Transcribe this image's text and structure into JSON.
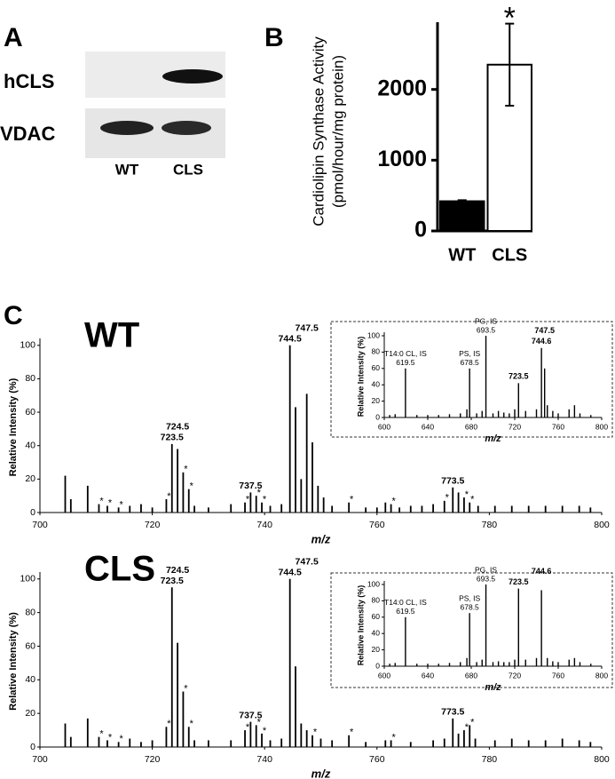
{
  "panel_labels": [
    "A",
    "B",
    "C"
  ],
  "blot": {
    "rows": [
      "hCLS",
      "VDAC"
    ],
    "lanes": [
      "WT",
      "CLS"
    ]
  },
  "chart_data": [
    {
      "type": "bar",
      "y_label": [
        "Cardiolipin Synthase Activity",
        "(pmol/hour/mg protein)"
      ],
      "categories": [
        "WT",
        "CLS"
      ],
      "values": [
        420,
        2350
      ],
      "errors": [
        15,
        580
      ],
      "colors": [
        "#000000",
        "#ffffff"
      ],
      "significance": "*",
      "ylim": [
        0,
        2950
      ],
      "yticks": [
        0,
        1000,
        2000
      ]
    },
    {
      "type": "spectrum",
      "title": "WT",
      "x_label": "m/z",
      "y_label": "Relative Intensity (%)",
      "xlim": [
        700,
        800
      ],
      "xticks": [
        700,
        720,
        740,
        760,
        780,
        800
      ],
      "ylim": [
        0,
        102
      ],
      "yticks": [
        0,
        20,
        40,
        60,
        80,
        100
      ],
      "x": [
        704.5,
        705.5,
        708.5,
        710.5,
        712,
        714,
        716,
        718,
        720,
        722.5,
        723.5,
        724.5,
        725.5,
        726.5,
        727.5,
        730,
        734,
        736.5,
        737.5,
        738.5,
        739.5,
        741,
        743,
        744.5,
        745.5,
        746.5,
        747.5,
        748.5,
        749.5,
        750.5,
        752,
        755,
        758,
        760,
        761.5,
        762.5,
        764,
        766,
        768,
        770,
        772,
        773.5,
        774.5,
        775.5,
        776.5,
        778,
        781,
        784,
        787,
        790,
        793,
        796,
        798
      ],
      "values": [
        22,
        8,
        16,
        5,
        4,
        3,
        4,
        5,
        3,
        8,
        41,
        38,
        24,
        14,
        4,
        3,
        5,
        6,
        12,
        10,
        6,
        4,
        5,
        100,
        63,
        20,
        71,
        42,
        16,
        9,
        4,
        6,
        3,
        3,
        6,
        5,
        3,
        4,
        4,
        5,
        7,
        15,
        12,
        9,
        6,
        4,
        4,
        4,
        4,
        4,
        4,
        4,
        3
      ],
      "peak_labels": [
        {
          "x": 723.5,
          "text": "723.5"
        },
        {
          "x": 724.5,
          "text": "724.5"
        },
        {
          "x": 737.5,
          "text": "737.5"
        },
        {
          "x": 744.5,
          "text": "744.5"
        },
        {
          "x": 747.5,
          "text": "747.5"
        },
        {
          "x": 773.5,
          "text": "773.5"
        },
        {
          "x": 710.5,
          "text": "*"
        },
        {
          "x": 712,
          "text": "*"
        },
        {
          "x": 714,
          "text": "*"
        },
        {
          "x": 722.5,
          "text": "*"
        },
        {
          "x": 725.5,
          "text": "*"
        },
        {
          "x": 726.5,
          "text": "*"
        },
        {
          "x": 736.5,
          "text": "*"
        },
        {
          "x": 738.5,
          "text": "*"
        },
        {
          "x": 739.5,
          "text": "*"
        },
        {
          "x": 755,
          "text": "*"
        },
        {
          "x": 762.5,
          "text": "*"
        },
        {
          "x": 772,
          "text": "*"
        },
        {
          "x": 775.5,
          "text": "*"
        },
        {
          "x": 776.5,
          "text": "*"
        }
      ]
    },
    {
      "type": "spectrum",
      "inset": true,
      "x_label": "m/z",
      "y_label": "Relative Intensity (%)",
      "xlim": [
        600,
        800
      ],
      "xticks": [
        600,
        640,
        680,
        720,
        760,
        800
      ],
      "ylim": [
        0,
        100
      ],
      "yticks": [
        0,
        20,
        40,
        60,
        80,
        100
      ],
      "x": [
        605,
        610,
        619.5,
        630,
        640,
        650,
        660,
        670,
        676,
        678.5,
        685,
        690,
        693.5,
        700,
        705,
        710,
        715,
        720,
        723.5,
        730,
        740,
        744.6,
        747.5,
        750,
        755,
        760,
        770,
        775,
        780,
        790
      ],
      "values": [
        3,
        4,
        60,
        3,
        3,
        3,
        4,
        5,
        10,
        60,
        5,
        8,
        100,
        5,
        8,
        6,
        5,
        10,
        42,
        8,
        10,
        85,
        60,
        15,
        8,
        5,
        10,
        15,
        5,
        3
      ],
      "peak_labels": [
        {
          "x": 619.5,
          "text": [
            "T14:0 CL, IS",
            "619.5"
          ]
        },
        {
          "x": 678.5,
          "text": [
            "PS, IS",
            "678.5"
          ]
        },
        {
          "x": 693.5,
          "text": [
            "PG, IS",
            "693.5"
          ]
        },
        {
          "x": 723.5,
          "text": "723.5"
        },
        {
          "x": 744.6,
          "text": "744.6"
        },
        {
          "x": 747.5,
          "text": "747.5"
        }
      ]
    },
    {
      "type": "spectrum",
      "title": "CLS",
      "x_label": "m/z",
      "y_label": "Relative Intensity (%)",
      "xlim": [
        700,
        800
      ],
      "xticks": [
        700,
        720,
        740,
        760,
        780,
        800
      ],
      "ylim": [
        0,
        102
      ],
      "yticks": [
        0,
        20,
        40,
        60,
        80,
        100
      ],
      "x": [
        704.5,
        705.5,
        708.5,
        710.5,
        712,
        714,
        716,
        718,
        720,
        722.5,
        723.5,
        724.5,
        725.5,
        726.5,
        727.5,
        730,
        734,
        736.5,
        737.5,
        738.5,
        739.5,
        741,
        743,
        744.5,
        745.5,
        746.5,
        747.5,
        748.5,
        750,
        752,
        755,
        758,
        761.5,
        762.5,
        766,
        770,
        772,
        773.5,
        774.5,
        775.5,
        776.5,
        777.5,
        781,
        784,
        787,
        790,
        793,
        796,
        798
      ],
      "values": [
        14,
        6,
        17,
        6,
        4,
        3,
        5,
        3,
        4,
        12,
        95,
        62,
        33,
        12,
        4,
        4,
        4,
        10,
        15,
        13,
        8,
        4,
        5,
        100,
        48,
        14,
        10,
        7,
        5,
        4,
        7,
        3,
        4,
        4,
        3,
        4,
        5,
        17,
        8,
        10,
        13,
        5,
        4,
        5,
        4,
        4,
        5,
        4,
        3
      ],
      "peak_labels": [
        {
          "x": 723.5,
          "text": "723.5"
        },
        {
          "x": 724.5,
          "text": "724.5"
        },
        {
          "x": 737.5,
          "text": "737.5"
        },
        {
          "x": 744.5,
          "text": "744.5"
        },
        {
          "x": 747.5,
          "text": "747.5"
        },
        {
          "x": 773.5,
          "text": "773.5"
        },
        {
          "x": 710.5,
          "text": "*"
        },
        {
          "x": 712,
          "text": "*"
        },
        {
          "x": 714,
          "text": "*"
        },
        {
          "x": 722.5,
          "text": "*"
        },
        {
          "x": 725.5,
          "text": "*"
        },
        {
          "x": 726.5,
          "text": "*"
        },
        {
          "x": 736.5,
          "text": "*"
        },
        {
          "x": 738.5,
          "text": "*"
        },
        {
          "x": 739.5,
          "text": "*"
        },
        {
          "x": 748.5,
          "text": "*"
        },
        {
          "x": 755,
          "text": "*"
        },
        {
          "x": 762.5,
          "text": "*"
        },
        {
          "x": 775.5,
          "text": "*"
        },
        {
          "x": 776.5,
          "text": "*"
        }
      ]
    },
    {
      "type": "spectrum",
      "inset": true,
      "x_label": "m/z",
      "y_label": "Relative Intensity (%)",
      "xlim": [
        600,
        800
      ],
      "xticks": [
        600,
        640,
        680,
        720,
        760,
        800
      ],
      "ylim": [
        0,
        100
      ],
      "yticks": [
        0,
        20,
        40,
        60,
        80,
        100
      ],
      "x": [
        605,
        610,
        619.5,
        630,
        640,
        650,
        660,
        670,
        676,
        678.5,
        685,
        690,
        693.5,
        700,
        705,
        710,
        715,
        720,
        723.5,
        730,
        740,
        744.6,
        750,
        755,
        760,
        770,
        775,
        780,
        790
      ],
      "values": [
        3,
        4,
        60,
        3,
        3,
        3,
        4,
        5,
        10,
        65,
        5,
        8,
        100,
        5,
        6,
        5,
        5,
        8,
        95,
        8,
        10,
        93,
        10,
        6,
        5,
        8,
        10,
        5,
        3
      ],
      "peak_labels": [
        {
          "x": 619.5,
          "text": [
            "T14:0 CL, IS",
            "619.5"
          ]
        },
        {
          "x": 678.5,
          "text": [
            "PS, IS",
            "678.5"
          ]
        },
        {
          "x": 693.5,
          "text": [
            "PG, IS",
            "693.5"
          ]
        },
        {
          "x": 723.5,
          "text": "723.5"
        },
        {
          "x": 744.6,
          "text": "744.6"
        }
      ]
    }
  ]
}
